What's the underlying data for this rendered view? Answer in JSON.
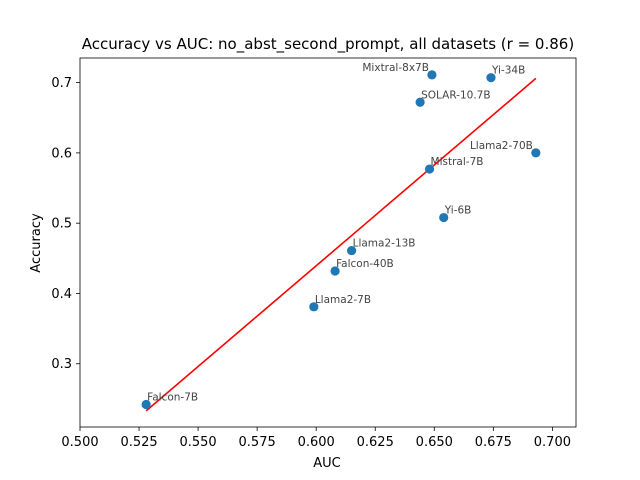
{
  "chart_data": {
    "type": "scatter",
    "title": "Accuracy vs AUC: no_abst_second_prompt, all datasets (r = 0.86)",
    "xlabel": "AUC",
    "ylabel": "Accuracy",
    "xlim": [
      0.5,
      0.71
    ],
    "ylim": [
      0.21,
      0.735
    ],
    "xticks": [
      0.5,
      0.525,
      0.55,
      0.575,
      0.6,
      0.625,
      0.65,
      0.675,
      0.7
    ],
    "xtick_labels": [
      "0.500",
      "0.525",
      "0.550",
      "0.575",
      "0.600",
      "0.625",
      "0.650",
      "0.675",
      "0.700"
    ],
    "yticks": [
      0.3,
      0.4,
      0.5,
      0.6,
      0.7
    ],
    "ytick_labels": [
      "0.3",
      "0.4",
      "0.5",
      "0.6",
      "0.7"
    ],
    "grid": false,
    "points": [
      {
        "label": "Falcon-7B",
        "x": 0.528,
        "y": 0.242
      },
      {
        "label": "Llama2-7B",
        "x": 0.599,
        "y": 0.381
      },
      {
        "label": "Falcon-40B",
        "x": 0.608,
        "y": 0.432
      },
      {
        "label": "Llama2-13B",
        "x": 0.615,
        "y": 0.461
      },
      {
        "label": "SOLAR-10.7B",
        "x": 0.644,
        "y": 0.672
      },
      {
        "label": "Mistral-7B",
        "x": 0.648,
        "y": 0.577
      },
      {
        "label": "Mixtral-8x7B",
        "x": 0.649,
        "y": 0.711
      },
      {
        "label": "Yi-6B",
        "x": 0.654,
        "y": 0.508
      },
      {
        "label": "Yi-34B",
        "x": 0.674,
        "y": 0.707
      },
      {
        "label": "Llama2-70B",
        "x": 0.693,
        "y": 0.6
      }
    ],
    "fit_line": {
      "x": [
        0.528,
        0.693
      ],
      "y": [
        0.233,
        0.706
      ]
    },
    "colors": {
      "points": "#1f77b4",
      "fit_line": "#ff0000",
      "labels": "#444444"
    }
  }
}
